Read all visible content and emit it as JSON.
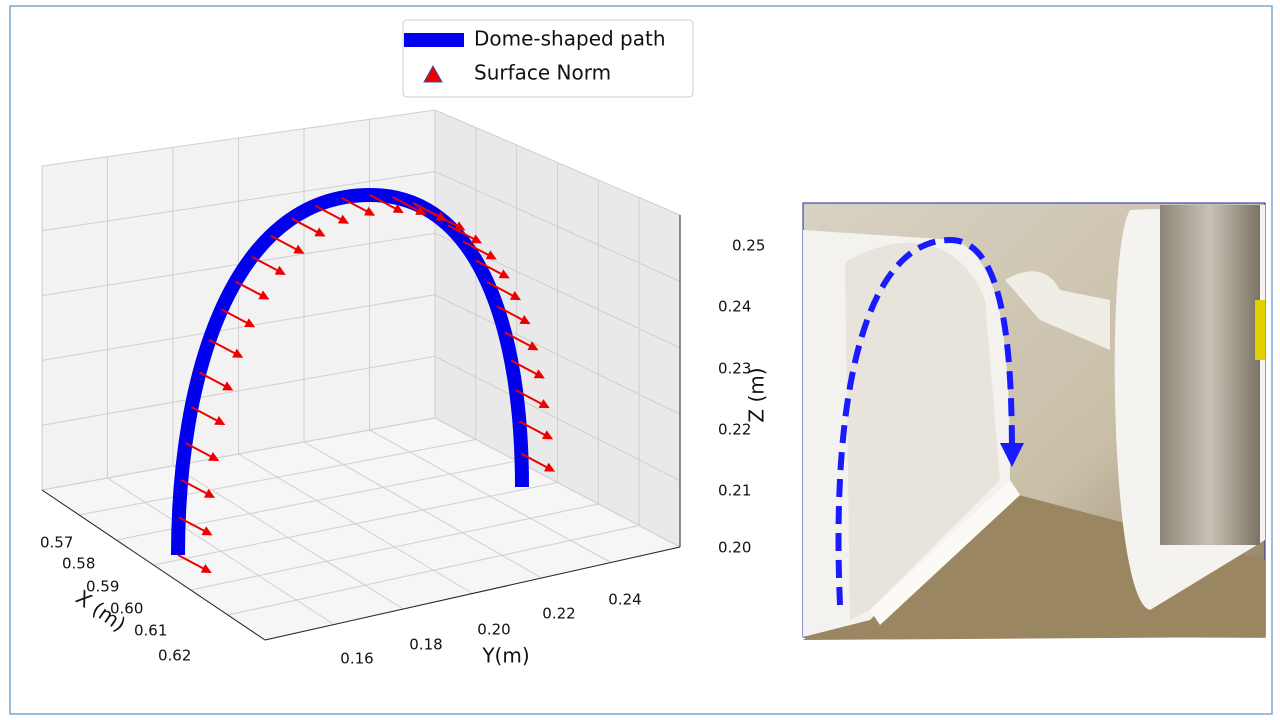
{
  "legend": {
    "items": [
      "Dome-shaped path",
      "Surface Norm"
    ]
  },
  "plot": {
    "x_axis": {
      "label": "X (m)",
      "ticks": [
        "0.57",
        "0.58",
        "0.59",
        "0.60",
        "0.61",
        "0.62"
      ]
    },
    "y_axis": {
      "label": "Y(m)",
      "ticks": [
        "0.16",
        "0.18",
        "0.20",
        "0.22",
        "0.24"
      ]
    },
    "z_axis": {
      "label": "Z (m)",
      "ticks": [
        "0.25",
        "0.24",
        "0.23",
        "0.22",
        "0.21",
        "0.20"
      ]
    }
  }
}
